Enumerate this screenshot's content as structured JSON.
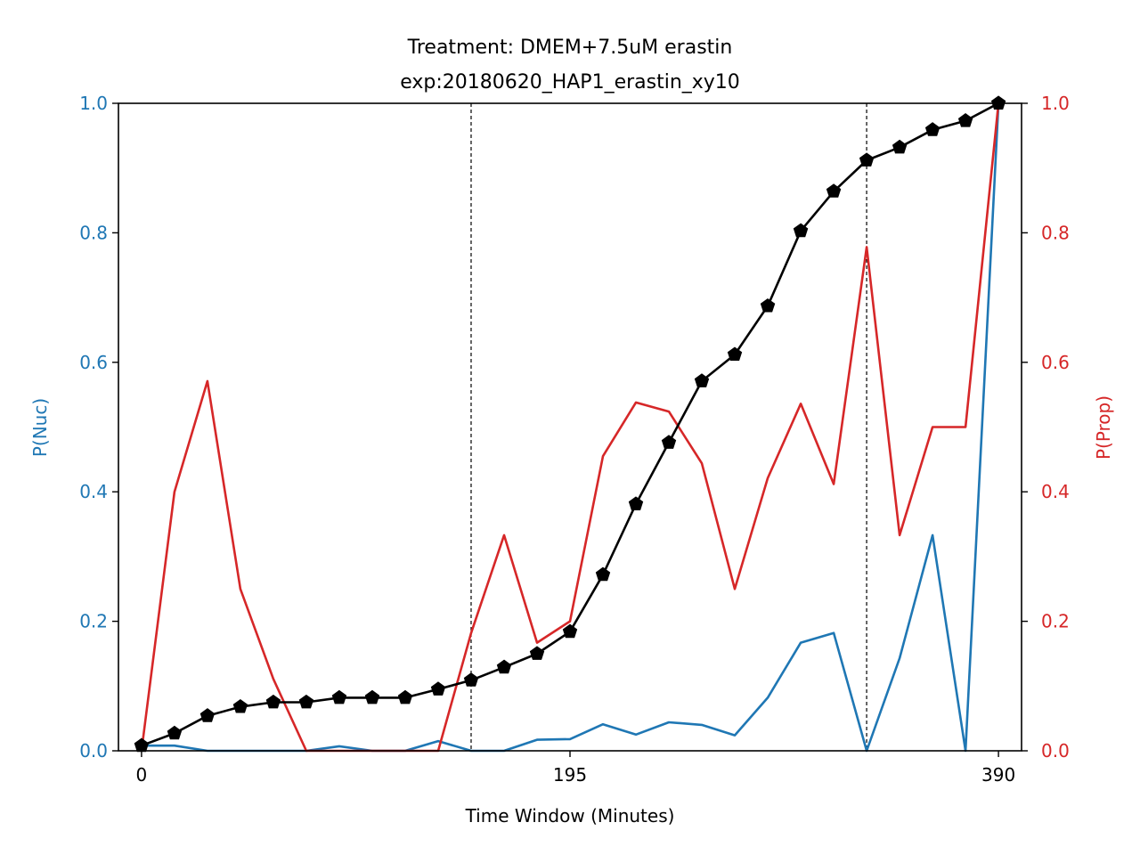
{
  "chart_data": {
    "type": "line",
    "title": "Treatment: DMEM+7.5uM erastin",
    "subtitle": "exp:20180620_HAP1_erastin_xy10",
    "xlabel": "Time Window (Minutes)",
    "ylabel_left": "P(Nuc)",
    "ylabel_right": "P(Prop)",
    "xlim": [
      -10.5,
      400.5
    ],
    "ylim_left": [
      0,
      1
    ],
    "ylim_right": [
      0,
      1
    ],
    "x_ticks": [
      0,
      195,
      390
    ],
    "y_ticks_left": [
      "0.0",
      "0.2",
      "0.4",
      "0.6",
      "0.8",
      "1.0"
    ],
    "y_ticks_right": [
      "0.0",
      "0.2",
      "0.4",
      "0.6",
      "0.8",
      "1.0"
    ],
    "vlines": [
      150,
      330
    ],
    "x": [
      0,
      15,
      30,
      45,
      60,
      75,
      90,
      105,
      120,
      135,
      150,
      165,
      180,
      195,
      210,
      225,
      240,
      255,
      270,
      285,
      300,
      315,
      330,
      345,
      360,
      375,
      390
    ],
    "series": [
      {
        "axis": "left",
        "color": "#1f77b4",
        "marker": "none",
        "values": [
          0.008,
          0.008,
          0.0,
          0.0,
          0.0,
          0.0,
          0.007,
          0.0,
          0.0,
          0.015,
          0.0,
          0.0,
          0.017,
          0.018,
          0.041,
          0.025,
          0.044,
          0.04,
          0.024,
          0.082,
          0.167,
          0.182,
          0.0,
          0.143,
          0.333,
          0.0,
          1.0
        ]
      },
      {
        "axis": "right",
        "color": "#d62728",
        "marker": "none",
        "values": [
          0.0,
          0.4,
          0.571,
          0.25,
          0.111,
          0.0,
          0.0,
          0.0,
          0.0,
          0.0,
          0.182,
          0.333,
          0.167,
          0.2,
          0.455,
          0.538,
          0.524,
          0.444,
          0.25,
          0.421,
          0.536,
          0.412,
          0.778,
          0.333,
          0.5,
          0.5,
          1.0
        ]
      },
      {
        "axis": "left",
        "color": "#000000",
        "marker": "pentagon",
        "values": [
          0.008,
          0.027,
          0.054,
          0.068,
          0.075,
          0.075,
          0.082,
          0.082,
          0.082,
          0.095,
          0.109,
          0.129,
          0.15,
          0.184,
          0.272,
          0.381,
          0.476,
          0.571,
          0.612,
          0.687,
          0.803,
          0.864,
          0.912,
          0.932,
          0.959,
          0.973,
          1.0
        ]
      }
    ]
  },
  "colors": {
    "left_axis": "#1f77b4",
    "right_axis": "#d62728",
    "frame": "#000000"
  }
}
